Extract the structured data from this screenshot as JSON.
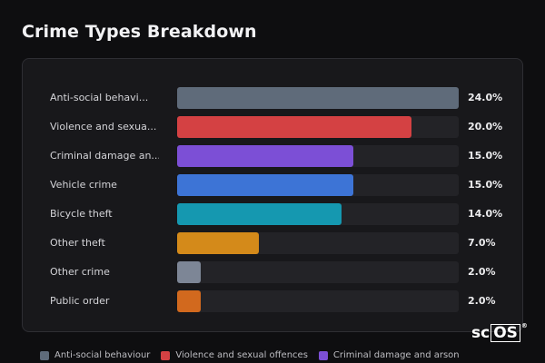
{
  "title": "Crime Types Breakdown",
  "chart_data": {
    "type": "bar",
    "orientation": "horizontal",
    "title": "Crime Types Breakdown",
    "xlim": [
      0,
      24
    ],
    "grid": false,
    "legend_position": "bottom",
    "categories": [
      "Anti-social behavi...",
      "Violence and sexua...",
      "Criminal damage an...",
      "Vehicle crime",
      "Bicycle theft",
      "Other theft",
      "Other crime",
      "Public order"
    ],
    "values": [
      24.0,
      20.0,
      15.0,
      15.0,
      14.0,
      7.0,
      2.0,
      2.0
    ],
    "value_labels": [
      "24.0%",
      "20.0%",
      "15.0%",
      "15.0%",
      "14.0%",
      "7.0%",
      "2.0%",
      "2.0%"
    ],
    "colors": [
      "#5f6b7a",
      "#d44143",
      "#7c4fd6",
      "#3d74d6",
      "#1598b0",
      "#d48a1a",
      "#7d8696",
      "#d2691e"
    ]
  },
  "legend": [
    {
      "label": "Anti-social behaviour",
      "color": "#5f6b7a"
    },
    {
      "label": "Violence and sexual offences",
      "color": "#d44143"
    },
    {
      "label": "Criminal damage and arson",
      "color": "#7c4fd6"
    }
  ],
  "logo": {
    "prefix": "sc",
    "boxed": "OS",
    "mark": "®"
  }
}
